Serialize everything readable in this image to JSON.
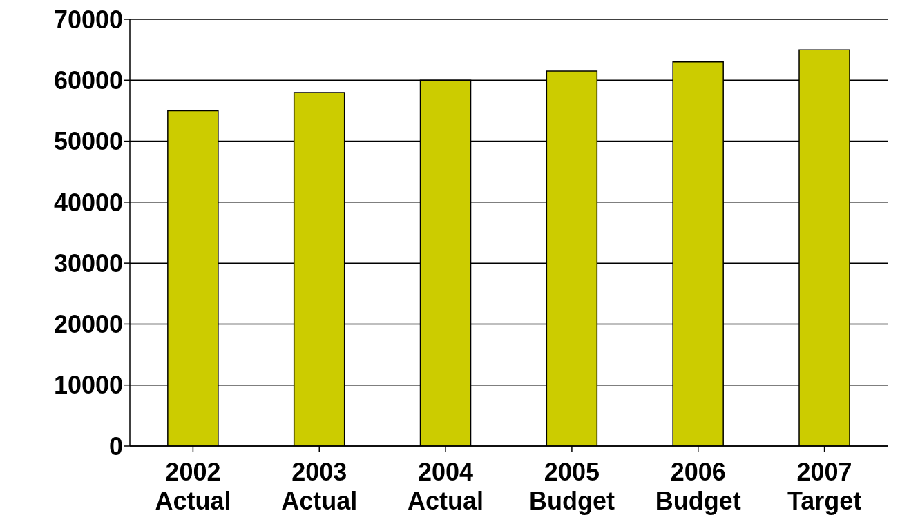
{
  "chart_data": {
    "type": "bar",
    "categories": [
      "2002 Actual",
      "2003 Actual",
      "2004 Actual",
      "2005 Budget",
      "2006 Budget",
      "2007 Target"
    ],
    "values": [
      55000,
      58000,
      60000,
      61500,
      63000,
      65000
    ],
    "color": "#cccc00",
    "ylim": [
      0,
      70000
    ],
    "yticks": [
      0,
      10000,
      20000,
      30000,
      40000,
      50000,
      60000,
      70000
    ],
    "grid": "y"
  }
}
